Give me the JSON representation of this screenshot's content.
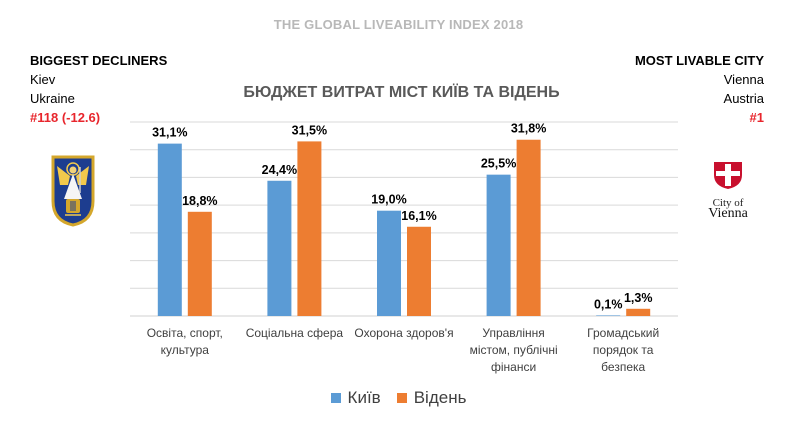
{
  "header": {
    "title": "THE GLOBAL LIVEABILITY INDEX 2018"
  },
  "left_panel": {
    "heading": "BIGGEST DECLINERS",
    "city": "Kiev",
    "country": "Ukraine",
    "rank": "#118 (-12.6)"
  },
  "right_panel": {
    "heading": "MOST LIVABLE CITY",
    "city": "Vienna",
    "country": "Austria",
    "rank": "#1"
  },
  "logos": {
    "kiev": {
      "icon": "kiev-coat-of-arms-icon"
    },
    "vienna": {
      "icon": "vienna-flag-shield-icon",
      "line1": "City of",
      "line2": "Vienna"
    }
  },
  "colors": {
    "kyiv": "#5b9bd5",
    "vienna": "#ed7d31",
    "rank": "#e8262d",
    "grid": "#d9d9d9"
  },
  "chart_data": {
    "type": "bar",
    "title": "БЮДЖЕТ ВИТРАТ МІСТ КИЇВ ТА ВІДЕНЬ",
    "xlabel": "",
    "ylabel": "",
    "ylim": [
      0,
      35
    ],
    "grid": true,
    "legend_position": "bottom",
    "categories": [
      [
        "Освіта, спорт,",
        "культура"
      ],
      [
        "Соціальна сфера"
      ],
      [
        "Охорона здоров'я"
      ],
      [
        "Управління",
        "містом, публічні",
        "фінанси"
      ],
      [
        "Громадський",
        "порядок та",
        "безпека"
      ]
    ],
    "series": [
      {
        "name": "Київ",
        "values": [
          31.1,
          24.4,
          19.0,
          25.5,
          0.1
        ],
        "labels": [
          "31,1%",
          "24,4%",
          "19,0%",
          "25,5%",
          "0,1%"
        ]
      },
      {
        "name": "Відень",
        "values": [
          18.8,
          31.5,
          16.1,
          31.8,
          1.3
        ],
        "labels": [
          "18,8%",
          "31,5%",
          "16,1%",
          "31,8%",
          "1,3%"
        ]
      }
    ]
  }
}
